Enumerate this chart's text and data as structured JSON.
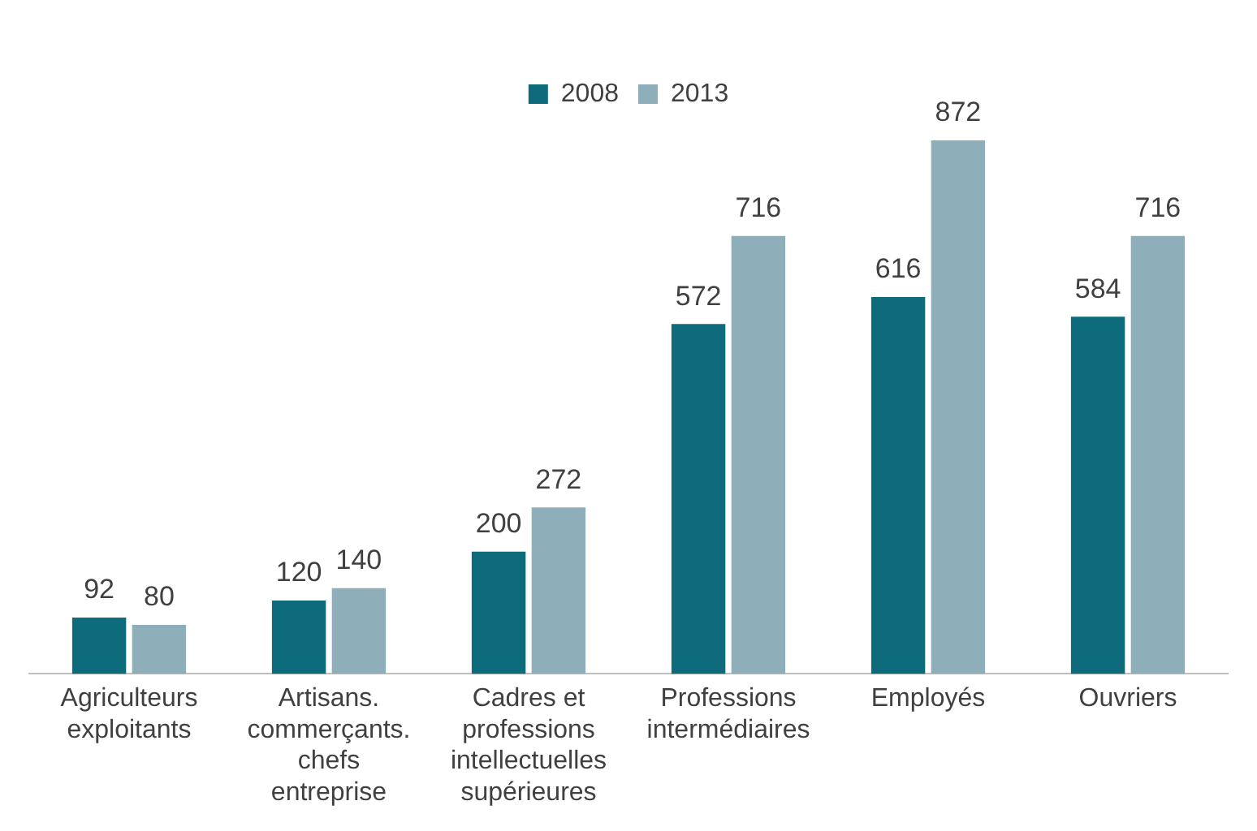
{
  "chart_data": {
    "type": "bar",
    "categories": [
      "Agriculteurs exploitants",
      "Artisans. commerçants. chefs entreprise",
      "Cadres et professions intellectuelles supérieures",
      "Professions intermédiaires",
      "Employés",
      "Ouvriers"
    ],
    "series": [
      {
        "name": "2008",
        "color": "#0e6b7c",
        "values": [
          92,
          120,
          200,
          572,
          616,
          584
        ]
      },
      {
        "name": "2013",
        "color": "#8eaeb9",
        "values": [
          80,
          140,
          272,
          716,
          872,
          716
        ]
      }
    ],
    "data_labels": true,
    "legend": "top",
    "grid": false
  }
}
